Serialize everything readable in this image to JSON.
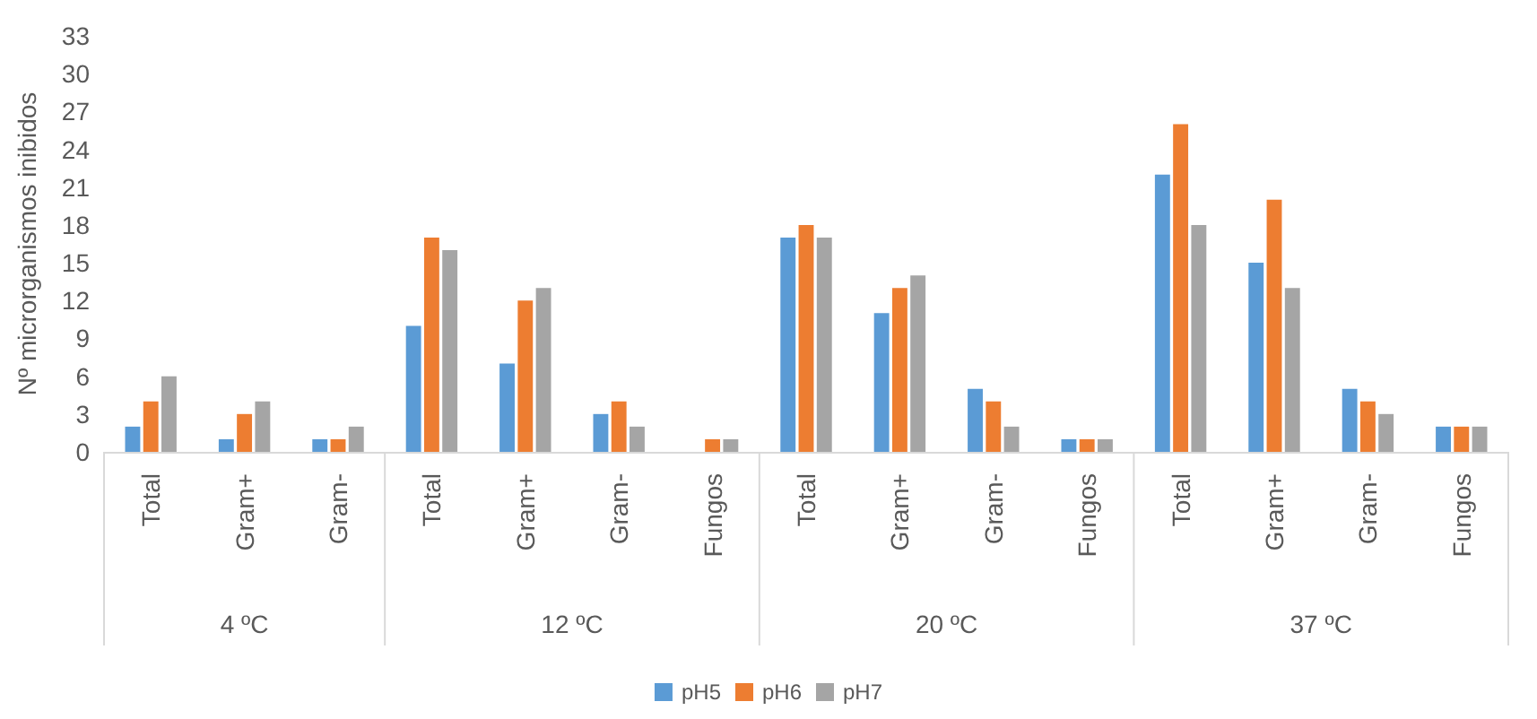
{
  "chart_data": {
    "type": "bar",
    "ylabel": "Nº microrganismos inibidos",
    "categories": [
      "Total",
      "Gram+",
      "Gram-",
      "Total",
      "Gram+",
      "Gram-",
      "Fungos",
      "Total",
      "Gram+",
      "Gram-",
      "Fungos",
      "Total",
      "Gram+",
      "Gram-",
      "Fungos"
    ],
    "series": [
      {
        "name": "pH5",
        "color": "#5b9bd5",
        "values": [
          2,
          1,
          1,
          10,
          7,
          3,
          0,
          17,
          11,
          5,
          1,
          22,
          15,
          5,
          2
        ]
      },
      {
        "name": "pH6",
        "color": "#ed7d31",
        "values": [
          4,
          3,
          1,
          17,
          12,
          4,
          1,
          18,
          13,
          4,
          1,
          26,
          20,
          4,
          2
        ]
      },
      {
        "name": "pH7",
        "color": "#a5a5a5",
        "values": [
          6,
          4,
          2,
          16,
          13,
          2,
          1,
          17,
          14,
          2,
          1,
          18,
          13,
          3,
          2
        ]
      }
    ],
    "ylim": [
      0,
      33
    ],
    "yticks": [
      0,
      3,
      6,
      9,
      12,
      15,
      18,
      21,
      24,
      27,
      30,
      33
    ],
    "grid": false,
    "legend": "bottom",
    "annotations": [
      "4 ºC",
      "12 ºC",
      "20 ºC",
      "37 ºC"
    ]
  }
}
